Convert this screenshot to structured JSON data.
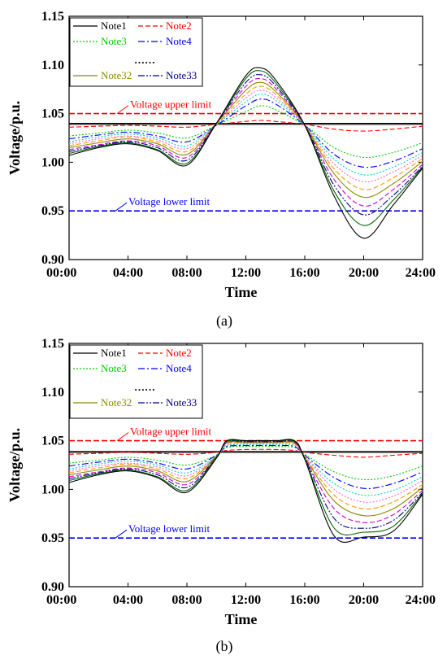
{
  "figure": {
    "panel_a_label": "(a)",
    "panel_b_label": "(b)"
  },
  "colors": {
    "axis": "#000000",
    "upper_limit": "#ff0000",
    "lower_limit": "#0000ff",
    "reference": "#000000"
  },
  "chart_data": [
    {
      "type": "line",
      "panel": "a",
      "xlabel": "Time",
      "ylabel": "Voltage/p.u.",
      "xlim": [
        "00:00",
        "24:00"
      ],
      "ylim": [
        0.9,
        1.15
      ],
      "x_ticks": [
        "00:00",
        "04:00",
        "08:00",
        "12:00",
        "16:00",
        "20:00",
        "24:00"
      ],
      "y_ticks": [
        "0.90",
        "0.95",
        "1.00",
        "1.05",
        "1.10",
        "1.15"
      ],
      "grid": false,
      "legend_position": "top-left",
      "legend": [
        {
          "label": "Note1",
          "color": "#000000",
          "dash": "solid"
        },
        {
          "label": "Note2",
          "color": "#ff0000",
          "dash": "dashed"
        },
        {
          "label": "Note3",
          "color": "#00cc00",
          "dash": "dotted"
        },
        {
          "label": "Note4",
          "color": "#0000ff",
          "dash": "dashdot"
        },
        {
          "label": "Note32",
          "color": "#8b8b00",
          "dash": "solid"
        },
        {
          "label": "Note33",
          "color": "#000080",
          "dash": "dashdotdot"
        }
      ],
      "legend_ellipsis": "……",
      "annotations": [
        {
          "text": "Voltage upper limit",
          "value": 1.05,
          "color": "#ff0000"
        },
        {
          "text": "Voltage lower limit",
          "value": 0.95,
          "color": "#0000ff"
        }
      ],
      "reference_line": 1.04,
      "x_hours": [
        0,
        2,
        4,
        6,
        8,
        10,
        12,
        13,
        14,
        16,
        18,
        20,
        22,
        24
      ],
      "series": [
        {
          "color": "#000000",
          "dash": "solid",
          "values": [
            1.039,
            1.039,
            1.039,
            1.039,
            1.039,
            1.039,
            1.039,
            1.039,
            1.039,
            1.039,
            1.039,
            1.039,
            1.039,
            1.039
          ]
        },
        {
          "color": "#ff0000",
          "dash": "dashed",
          "values": [
            1.036,
            1.037,
            1.038,
            1.037,
            1.036,
            1.039,
            1.042,
            1.043,
            1.042,
            1.039,
            1.034,
            1.032,
            1.034,
            1.037
          ]
        },
        {
          "color": "#00cc00",
          "dash": "dotted",
          "values": [
            1.027,
            1.03,
            1.033,
            1.03,
            1.025,
            1.038,
            1.052,
            1.058,
            1.054,
            1.038,
            1.015,
            1.005,
            1.01,
            1.02
          ]
        },
        {
          "color": "#0000ff",
          "dash": "dashdot",
          "values": [
            1.024,
            1.028,
            1.031,
            1.027,
            1.021,
            1.038,
            1.058,
            1.065,
            1.06,
            1.038,
            1.008,
            0.995,
            1.001,
            1.014
          ]
        },
        {
          "color": "#00cccc",
          "dash": "dotted",
          "values": [
            1.021,
            1.026,
            1.029,
            1.025,
            1.017,
            1.039,
            1.062,
            1.07,
            1.064,
            1.038,
            1.003,
            0.987,
            0.995,
            1.01
          ]
        },
        {
          "color": "#ff66cc",
          "dash": "dotted",
          "values": [
            1.019,
            1.024,
            1.027,
            1.023,
            1.014,
            1.039,
            1.066,
            1.074,
            1.067,
            1.038,
            0.998,
            0.98,
            0.99,
            1.007
          ]
        },
        {
          "color": "#ff9900",
          "dash": "dashed",
          "values": [
            1.017,
            1.022,
            1.026,
            1.021,
            1.011,
            1.039,
            1.07,
            1.078,
            1.07,
            1.038,
            0.993,
            0.972,
            0.984,
            1.004
          ]
        },
        {
          "color": "#8b8b00",
          "dash": "solid",
          "values": [
            1.015,
            1.02,
            1.024,
            1.019,
            1.008,
            1.04,
            1.074,
            1.082,
            1.073,
            1.038,
            0.988,
            0.964,
            0.978,
            1.001
          ]
        },
        {
          "color": "#cc00cc",
          "dash": "dashed",
          "values": [
            1.013,
            1.018,
            1.022,
            1.017,
            1.005,
            1.04,
            1.078,
            1.086,
            1.076,
            1.038,
            0.982,
            0.955,
            0.972,
            0.998
          ]
        },
        {
          "color": "#000080",
          "dash": "dashdotdot",
          "values": [
            1.011,
            1.017,
            1.021,
            1.015,
            1.002,
            1.04,
            1.082,
            1.09,
            1.079,
            1.038,
            0.976,
            0.946,
            0.966,
            0.996
          ]
        },
        {
          "color": "#006600",
          "dash": "solid",
          "values": [
            1.009,
            1.016,
            1.02,
            1.013,
            0.999,
            1.04,
            1.086,
            1.094,
            1.082,
            1.038,
            0.97,
            0.935,
            0.961,
            0.995
          ]
        },
        {
          "color": "#000000",
          "dash": "solid",
          "values": [
            1.007,
            1.015,
            1.019,
            1.012,
            0.997,
            1.04,
            1.089,
            1.097,
            1.085,
            1.038,
            0.965,
            0.922,
            0.956,
            0.994
          ]
        }
      ]
    },
    {
      "type": "line",
      "panel": "b",
      "xlabel": "Time",
      "ylabel": "Voltage/p.u.",
      "xlim": [
        "00:00",
        "24:00"
      ],
      "ylim": [
        0.9,
        1.15
      ],
      "x_ticks": [
        "00:00",
        "04:00",
        "08:00",
        "12:00",
        "16:00",
        "20:00",
        "24:00"
      ],
      "y_ticks": [
        "0.90",
        "0.95",
        "1.00",
        "1.05",
        "1.10",
        "1.15"
      ],
      "grid": false,
      "legend_position": "top-left",
      "legend": [
        {
          "label": "Note1",
          "color": "#000000",
          "dash": "solid"
        },
        {
          "label": "Note2",
          "color": "#ff0000",
          "dash": "dashed"
        },
        {
          "label": "Note3",
          "color": "#00cc00",
          "dash": "dotted"
        },
        {
          "label": "Note4",
          "color": "#0000ff",
          "dash": "dashdot"
        },
        {
          "label": "Note32",
          "color": "#8b8b00",
          "dash": "solid"
        },
        {
          "label": "Note33",
          "color": "#000080",
          "dash": "dashdotdot"
        }
      ],
      "legend_ellipsis": "……",
      "annotations": [
        {
          "text": "Voltage upper limit",
          "value": 1.05,
          "color": "#ff0000"
        },
        {
          "text": "Voltage lower limit",
          "value": 0.95,
          "color": "#0000ff"
        }
      ],
      "reference_line": 1.039,
      "x_hours": [
        0,
        2,
        4,
        6,
        8,
        10,
        10.7,
        12,
        14,
        15.3,
        16,
        18,
        20,
        22,
        24
      ],
      "series": [
        {
          "color": "#000000",
          "dash": "solid",
          "values": [
            1.038,
            1.038,
            1.038,
            1.038,
            1.038,
            1.038,
            1.038,
            1.038,
            1.038,
            1.038,
            1.038,
            1.038,
            1.038,
            1.038,
            1.038
          ]
        },
        {
          "color": "#ff0000",
          "dash": "dashed",
          "values": [
            1.036,
            1.037,
            1.038,
            1.037,
            1.036,
            1.038,
            1.04,
            1.041,
            1.041,
            1.04,
            1.038,
            1.035,
            1.033,
            1.035,
            1.037
          ]
        },
        {
          "color": "#00cc00",
          "dash": "dotted",
          "values": [
            1.027,
            1.03,
            1.033,
            1.03,
            1.025,
            1.035,
            1.043,
            1.044,
            1.044,
            1.043,
            1.036,
            1.018,
            1.01,
            1.014,
            1.024
          ]
        },
        {
          "color": "#0000ff",
          "dash": "dashdot",
          "values": [
            1.024,
            1.028,
            1.031,
            1.027,
            1.021,
            1.035,
            1.044,
            1.045,
            1.045,
            1.044,
            1.035,
            1.012,
            1.001,
            1.006,
            1.018
          ]
        },
        {
          "color": "#00cccc",
          "dash": "dotted",
          "values": [
            1.021,
            1.026,
            1.029,
            1.025,
            1.017,
            1.034,
            1.045,
            1.046,
            1.046,
            1.045,
            1.034,
            1.006,
            0.994,
            0.999,
            1.013
          ]
        },
        {
          "color": "#ff66cc",
          "dash": "dotted",
          "values": [
            1.019,
            1.024,
            1.027,
            1.023,
            1.014,
            1.034,
            1.046,
            1.047,
            1.047,
            1.046,
            1.034,
            1.0,
            0.987,
            0.993,
            1.009
          ]
        },
        {
          "color": "#ff9900",
          "dash": "dashed",
          "values": [
            1.017,
            1.022,
            1.026,
            1.021,
            1.011,
            1.034,
            1.047,
            1.048,
            1.048,
            1.047,
            1.033,
            0.994,
            0.98,
            0.987,
            1.005
          ]
        },
        {
          "color": "#8b8b00",
          "dash": "solid",
          "values": [
            1.015,
            1.02,
            1.024,
            1.019,
            1.008,
            1.034,
            1.048,
            1.048,
            1.048,
            1.048,
            1.033,
            0.988,
            0.973,
            0.98,
            1.002
          ]
        },
        {
          "color": "#cc00cc",
          "dash": "dashed",
          "values": [
            1.013,
            1.018,
            1.022,
            1.017,
            1.005,
            1.033,
            1.048,
            1.049,
            1.049,
            1.048,
            1.032,
            0.98,
            0.966,
            0.974,
            0.999
          ]
        },
        {
          "color": "#000080",
          "dash": "dashdotdot",
          "values": [
            1.011,
            1.017,
            1.021,
            1.015,
            1.002,
            1.033,
            1.049,
            1.049,
            1.049,
            1.049,
            1.032,
            0.97,
            0.96,
            0.968,
            0.997
          ]
        },
        {
          "color": "#006600",
          "dash": "solid",
          "values": [
            1.009,
            1.016,
            1.02,
            1.013,
            0.999,
            1.033,
            1.049,
            1.05,
            1.05,
            1.049,
            1.031,
            0.96,
            0.956,
            0.962,
            0.996
          ]
        },
        {
          "color": "#000000",
          "dash": "solid",
          "values": [
            1.007,
            1.015,
            1.019,
            1.012,
            0.997,
            1.032,
            1.05,
            1.05,
            1.05,
            1.05,
            1.031,
            0.952,
            0.951,
            0.957,
            0.995
          ]
        }
      ]
    }
  ]
}
